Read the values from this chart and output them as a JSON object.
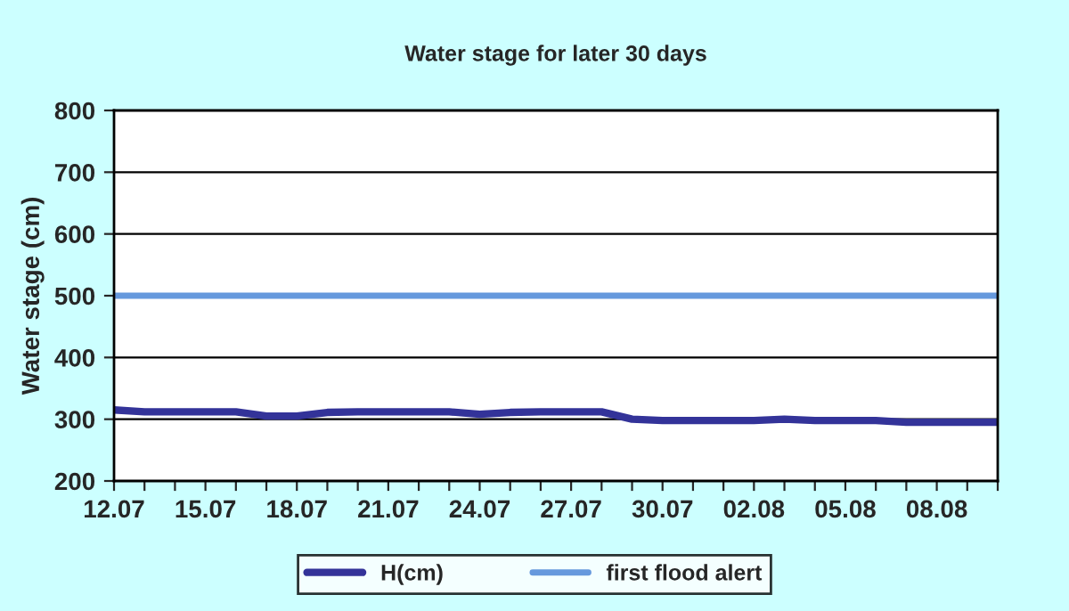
{
  "chart_data": {
    "type": "line",
    "title": "Water stage for later 30 days",
    "ylabel": "Water stage (cm)",
    "categories": [
      "12.07",
      null,
      null,
      "15.07",
      null,
      null,
      "18.07",
      null,
      null,
      "21.07",
      null,
      null,
      "24.07",
      null,
      null,
      "27.07",
      null,
      null,
      "30.07",
      null,
      null,
      "02.08",
      null,
      null,
      "05.08",
      null,
      null,
      "08.08",
      null,
      null
    ],
    "series": [
      {
        "name": "H(cm)",
        "color": "#333399",
        "values": [
          315,
          312,
          312,
          312,
          312,
          305,
          305,
          311,
          312,
          312,
          312,
          312,
          308,
          311,
          312,
          312,
          312,
          300,
          298,
          298,
          298,
          298,
          300,
          298,
          298,
          298,
          295,
          295,
          295,
          295
        ]
      },
      {
        "name": "first flood alert",
        "color": "#6699dd",
        "values": [
          500,
          500,
          500,
          500,
          500,
          500,
          500,
          500,
          500,
          500,
          500,
          500,
          500,
          500,
          500,
          500,
          500,
          500,
          500,
          500,
          500,
          500,
          500,
          500,
          500,
          500,
          500,
          500,
          500,
          500
        ]
      }
    ],
    "ylim": [
      200,
      800
    ],
    "yticks": [
      200,
      300,
      400,
      500,
      600,
      700,
      800
    ],
    "grid": "y",
    "legend": "bottom",
    "marker": "none",
    "line_style": "solid"
  }
}
